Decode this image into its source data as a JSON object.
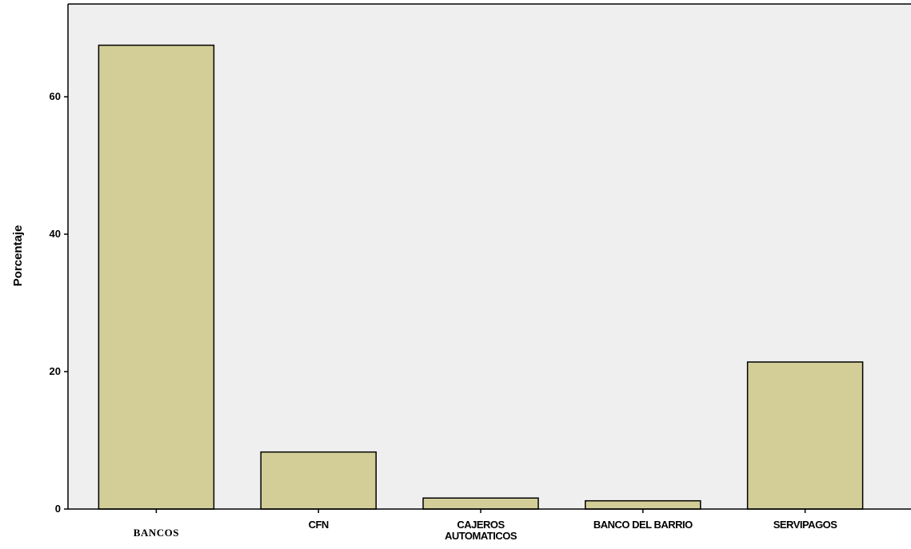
{
  "chart_data": {
    "type": "bar",
    "title": "",
    "xlabel": "",
    "ylabel": "Porcentaje",
    "categories": [
      "BANCOS",
      "CFN",
      "CAJEROS\nAUTOMATICOS",
      "BANCO DEL BARRIO",
      "SERVIPAGOS"
    ],
    "values": [
      67.5,
      8.3,
      1.6,
      1.2,
      21.4
    ],
    "ylim": [
      0,
      73.5
    ],
    "yticks": [
      0,
      20,
      40,
      60
    ],
    "grid": false,
    "legend": "none",
    "colors": {
      "plot_background": "#efefef",
      "bar_fill": "#d3ce97",
      "bar_stroke": "#000000"
    }
  }
}
